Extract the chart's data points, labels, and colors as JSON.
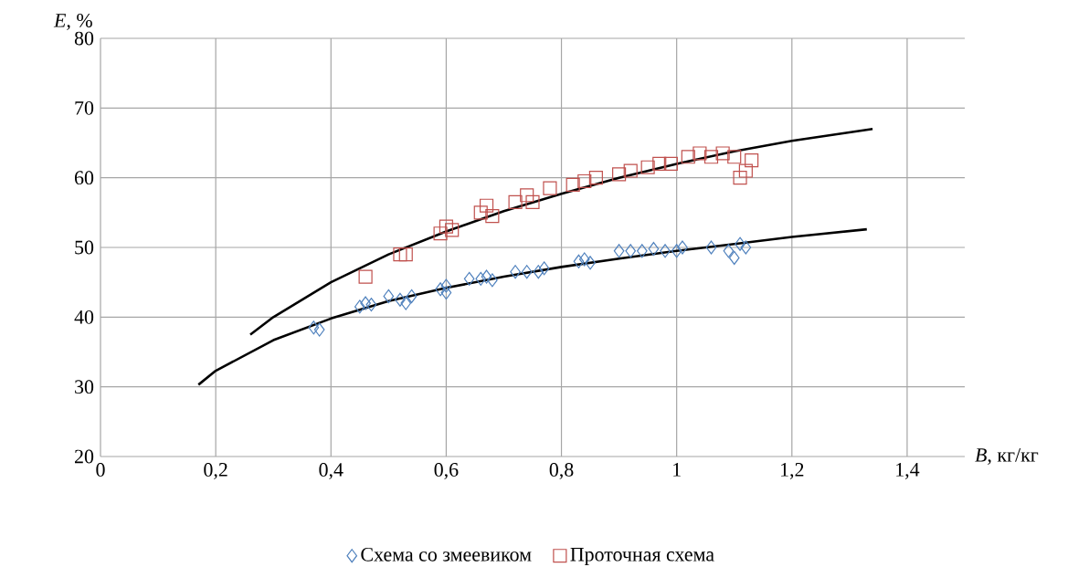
{
  "chart_data": {
    "type": "scatter",
    "xlabel": "*B*, кг/кг",
    "ylabel": "*E*, %",
    "xlim": [
      0,
      1.5
    ],
    "ylim": [
      20,
      80
    ],
    "xticks": [
      0,
      {
        "value": 0.2,
        "label": "0,2"
      },
      {
        "value": 0.4,
        "label": "0,4"
      },
      {
        "value": 0.6,
        "label": "0,6"
      },
      {
        "value": 0.8,
        "label": "0,8"
      },
      1,
      {
        "value": 1.2,
        "label": "1,2"
      },
      {
        "value": 1.4,
        "label": "1,4"
      }
    ],
    "yticks": [
      20,
      30,
      40,
      50,
      60,
      70,
      80
    ],
    "grid": true,
    "legend": "bottom",
    "series": [
      {
        "name": "Схема со змеевиком",
        "color": "#4f81bd",
        "marker": "diamond",
        "x": [
          0.37,
          0.38,
          0.45,
          0.46,
          0.47,
          0.5,
          0.52,
          0.53,
          0.54,
          0.59,
          0.6,
          0.6,
          0.64,
          0.66,
          0.67,
          0.68,
          0.72,
          0.74,
          0.76,
          0.77,
          0.83,
          0.84,
          0.85,
          0.9,
          0.92,
          0.94,
          0.96,
          0.98,
          1.0,
          1.01,
          1.06,
          1.09,
          1.1,
          1.11,
          1.12
        ],
        "values": [
          38.5,
          38.2,
          41.5,
          42,
          41.8,
          43,
          42.5,
          42,
          43,
          44,
          44.5,
          43.5,
          45.5,
          45.5,
          45.8,
          45.3,
          46.5,
          46.5,
          46.5,
          47,
          48,
          48.3,
          47.8,
          49.5,
          49.5,
          49.5,
          49.8,
          49.5,
          49.5,
          50,
          50,
          49.5,
          48.5,
          50.5,
          50
        ]
      },
      {
        "name": "Проточная схема",
        "color": "#c0504d",
        "marker": "square",
        "x": [
          0.46,
          0.52,
          0.53,
          0.59,
          0.6,
          0.61,
          0.66,
          0.67,
          0.68,
          0.72,
          0.74,
          0.75,
          0.78,
          0.82,
          0.84,
          0.86,
          0.9,
          0.92,
          0.95,
          0.97,
          0.99,
          1.02,
          1.04,
          1.06,
          1.08,
          1.1,
          1.11,
          1.12,
          1.13
        ],
        "values": [
          45.8,
          49,
          49,
          52,
          53,
          52.5,
          55,
          56,
          54.5,
          56.5,
          57.5,
          56.5,
          58.5,
          59,
          59.5,
          60,
          60.5,
          61,
          61.5,
          62,
          62,
          63,
          63.5,
          63,
          63.5,
          63,
          60,
          61,
          62.5
        ]
      },
      {
        "type": "line",
        "color": "#000000",
        "marker": "none",
        "x": [
          0.26,
          0.3,
          0.4,
          0.5,
          0.6,
          0.7,
          0.8,
          0.9,
          1.0,
          1.1,
          1.2,
          1.34
        ],
        "values": [
          37.5,
          40,
          45,
          49,
          52.3,
          55.2,
          57.7,
          60,
          62,
          63.8,
          65.3,
          67
        ]
      },
      {
        "type": "line",
        "color": "#000000",
        "marker": "none",
        "x": [
          0.17,
          0.2,
          0.3,
          0.4,
          0.5,
          0.6,
          0.7,
          0.8,
          0.9,
          1.0,
          1.1,
          1.2,
          1.33
        ],
        "values": [
          30.3,
          32.3,
          36.7,
          39.8,
          42.3,
          44.2,
          45.8,
          47.2,
          48.4,
          49.5,
          50.5,
          51.5,
          52.6
        ]
      }
    ]
  }
}
